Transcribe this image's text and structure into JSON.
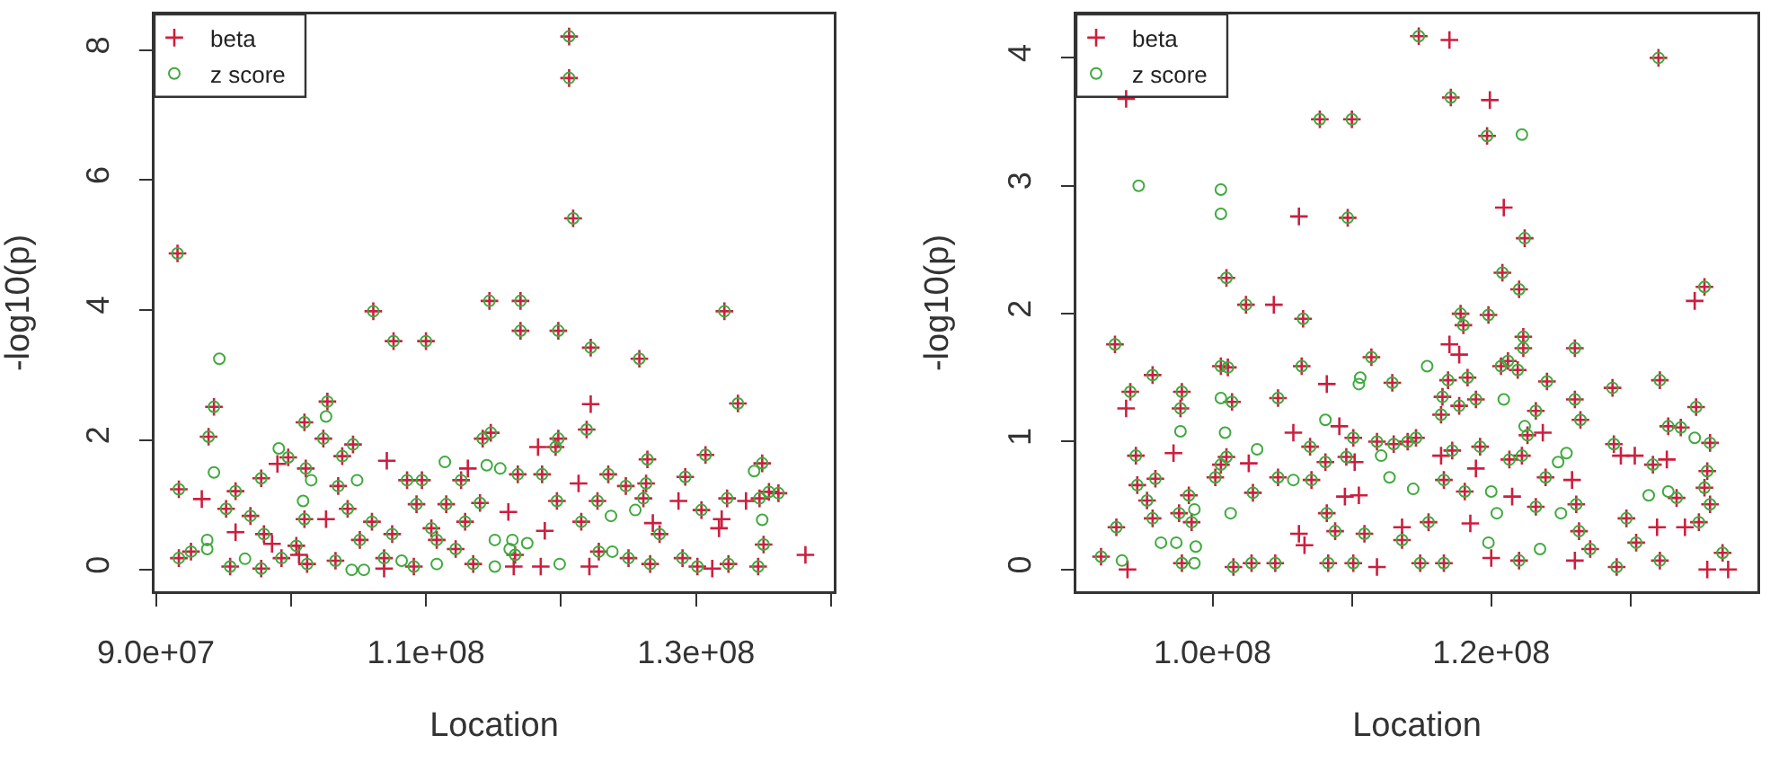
{
  "chart_data": [
    {
      "type": "scatter",
      "xlabel": "Location",
      "ylabel": "-log10(p)",
      "legend": "top left",
      "grid": false,
      "xlim": [
        89900000.0,
        140200000.0
      ],
      "xticks": [
        {
          "value": 90000000.0,
          "label": "9.0e+07"
        },
        {
          "value": 100000000.0,
          "label": null
        },
        {
          "value": 110000000.0,
          "label": "1.1e+08"
        },
        {
          "value": 120000000.0,
          "label": null
        },
        {
          "value": 130000000.0,
          "label": "1.3e+08"
        },
        {
          "value": 140000000.0,
          "label": null
        }
      ],
      "ylim": [
        -0.33,
        8.55
      ],
      "yticks": [
        0,
        2,
        4,
        6,
        8
      ],
      "series": [
        {
          "name": "beta",
          "color": "#cc1f3f",
          "marker": "cross",
          "x": [
            91600000.0,
            91700000.0,
            91700000.0,
            94300000.0,
            93900000.0,
            95200000.0,
            95900000.0,
            92600000.0,
            95500000.0,
            97000000.0,
            97800000.0,
            98000000.0,
            97800000.0,
            99800000.0,
            99300000.0,
            101000000.0,
            101100000.0,
            101000000.0,
            100400000.0,
            101200000.0,
            102400000.0,
            102700000.0,
            103300000.0,
            103800000.0,
            104600000.0,
            104200000.0,
            103500000.0,
            106000000.0,
            106100000.0,
            107600000.0,
            107500000.0,
            108600000.0,
            110000000.0,
            109700000.0,
            109100000.0,
            110400000.0,
            109300000.0,
            111500000.0,
            112200000.0,
            112900000.0,
            113500000.0,
            114000000.0,
            114200000.0,
            114700000.0,
            114800000.0,
            117000000.0,
            117000000.0,
            116800000.0,
            118600000.0,
            119800000.0,
            119800000.0,
            119600000.0,
            119700000.0,
            120600000.0,
            120600000.0,
            120900000.0,
            121500000.0,
            121900000.0,
            122200000.0,
            122700000.0,
            123500000.0,
            124800000.0,
            125800000.0,
            126100000.0,
            126400000.0,
            126300000.0,
            126600000.0,
            127300000.0,
            129200000.0,
            129000000.0,
            130400000.0,
            130700000.0,
            130100000.0,
            132100000.0,
            132300000.0,
            132400000.0,
            133100000.0,
            134900000.0,
            134700000.0,
            134600000.0,
            135400000.0,
            135000000.0,
            136100000.0,
            105100000.0,
            106900000.0,
            110800000.0,
            116600000.0,
            122800000.0,
            125000000.0,
            112600000.0,
            93400000.0,
            95900000.0,
            98600000.0,
            99000000.0,
            102600000.0,
            107100000.0,
            106900000.0,
            113100000.0,
            116100000.0,
            116500000.0,
            118300000.0,
            118500000.0,
            118800000.0,
            121300000.0,
            122200000.0,
            122100000.0,
            126800000.0,
            128700000.0,
            131200000.0,
            131700000.0,
            131900000.0,
            133700000.0,
            138100000.0,
            100600000.0
          ],
          "values": [
            4.87,
            1.24,
            0.18,
            2.51,
            2.05,
            0.94,
            1.21,
            0.28,
            0.05,
            0.83,
            1.41,
            0.55,
            0.02,
            1.73,
            0.18,
            2.27,
            1.56,
            0.78,
            0.37,
            0.09,
            2.02,
            2.59,
            0.14,
            1.75,
            1.93,
            0.94,
            1.29,
            0.74,
            3.98,
            3.52,
            0.55,
            1.38,
            3.52,
            1.38,
            0.05,
            0.64,
            1.01,
            1.01,
            0.32,
            0.74,
            0.09,
            1.03,
            2.02,
            4.14,
            2.11,
            4.14,
            3.68,
            1.47,
            1.47,
            3.68,
            2.02,
            1.89,
            1.06,
            8.21,
            7.57,
            5.41,
            0.74,
            2.16,
            3.42,
            1.06,
            1.47,
            1.29,
            3.25,
            1.1,
            1.7,
            1.33,
            0.09,
            0.55,
            1.43,
            0.18,
            0.92,
            1.77,
            0.05,
            3.98,
            1.1,
            0.09,
            2.56,
            1.64,
            1.1,
            0.05,
            1.2,
            0.39,
            1.18,
            0.46,
            0.18,
            0.46,
            0.23,
            0.28,
            0.18,
            1.38,
            1.09,
            0.58,
            0.4,
            1.63,
            0.78,
            1.68,
            0.02,
            1.56,
            0.89,
            0.05,
            1.89,
            0.05,
            0.6,
            1.33,
            2.55,
            0.05,
            0.72,
            1.06,
            0.02,
            0.64,
            0.78,
            1.06,
            0.23,
            0.23
          ]
        },
        {
          "name": "z score",
          "color": "#3faa3f",
          "marker": "circle",
          "x": [
            91600000.0,
            91700000.0,
            91700000.0,
            94300000.0,
            93900000.0,
            95200000.0,
            95900000.0,
            92600000.0,
            95500000.0,
            97000000.0,
            97800000.0,
            98000000.0,
            97800000.0,
            99800000.0,
            99300000.0,
            101000000.0,
            101100000.0,
            101000000.0,
            100400000.0,
            101200000.0,
            102400000.0,
            102700000.0,
            103300000.0,
            103800000.0,
            104600000.0,
            104200000.0,
            103500000.0,
            106000000.0,
            106100000.0,
            107600000.0,
            107500000.0,
            108600000.0,
            110000000.0,
            109700000.0,
            109100000.0,
            110400000.0,
            109300000.0,
            111500000.0,
            112200000.0,
            112900000.0,
            113500000.0,
            114000000.0,
            114200000.0,
            114700000.0,
            114800000.0,
            117000000.0,
            117000000.0,
            116800000.0,
            118600000.0,
            119800000.0,
            119800000.0,
            119600000.0,
            119700000.0,
            120600000.0,
            120600000.0,
            120900000.0,
            121500000.0,
            121900000.0,
            122200000.0,
            122700000.0,
            123500000.0,
            124800000.0,
            125800000.0,
            126100000.0,
            126400000.0,
            126300000.0,
            126600000.0,
            127300000.0,
            129200000.0,
            129000000.0,
            130400000.0,
            130700000.0,
            130100000.0,
            132100000.0,
            132300000.0,
            132400000.0,
            133100000.0,
            134900000.0,
            134700000.0,
            134600000.0,
            135400000.0,
            135000000.0,
            136100000.0,
            105100000.0,
            106900000.0,
            110800000.0,
            116600000.0,
            122800000.0,
            125000000.0,
            112600000.0,
            94700000.0,
            94300000.0,
            93800000.0,
            93800000.0,
            96600000.0,
            99100000.0,
            100900000.0,
            102600000.0,
            101500000.0,
            104500000.0,
            105400000.0,
            104900000.0,
            108200000.0,
            111400000.0,
            110800000.0,
            114500000.0,
            115500000.0,
            115100000.0,
            116200000.0,
            117500000.0,
            119900000.0,
            123800000.0,
            123700000.0,
            125500000.0,
            134300000.0,
            134900000.0,
            115100000.0,
            116400000.0
          ],
          "values": [
            4.87,
            1.24,
            0.18,
            2.51,
            2.05,
            0.94,
            1.21,
            0.28,
            0.05,
            0.83,
            1.41,
            0.55,
            0.02,
            1.73,
            0.18,
            2.27,
            1.56,
            0.78,
            0.37,
            0.09,
            2.02,
            2.59,
            0.14,
            1.75,
            1.93,
            0.94,
            1.29,
            0.74,
            3.98,
            3.52,
            0.55,
            1.38,
            3.52,
            1.38,
            0.05,
            0.64,
            1.01,
            1.01,
            0.32,
            0.74,
            0.09,
            1.03,
            2.02,
            4.14,
            2.11,
            4.14,
            3.68,
            1.47,
            1.47,
            3.68,
            2.02,
            1.89,
            1.06,
            8.21,
            7.57,
            5.41,
            0.74,
            2.16,
            3.42,
            1.06,
            1.47,
            1.29,
            3.25,
            1.1,
            1.7,
            1.33,
            0.09,
            0.55,
            1.43,
            0.18,
            0.92,
            1.77,
            0.05,
            3.98,
            1.1,
            0.09,
            2.56,
            1.64,
            1.1,
            0.05,
            1.2,
            0.39,
            1.18,
            0.46,
            0.18,
            0.46,
            0.23,
            0.28,
            0.18,
            1.38,
            3.25,
            1.5,
            0.46,
            0.32,
            0.17,
            1.87,
            1.06,
            2.36,
            1.38,
            0.0,
            0.0,
            1.38,
            0.14,
            1.66,
            0.09,
            1.61,
            1.56,
            0.05,
            0.32,
            0.41,
            0.09,
            0.28,
            0.83,
            0.92,
            1.52,
            0.77,
            0.46,
            0.46
          ]
        }
      ]
    },
    {
      "type": "scatter",
      "xlabel": "Location",
      "ylabel": "-log10(p)",
      "legend": "top left",
      "grid": false,
      "xlim": [
        90230000.0,
        139100000.0
      ],
      "xticks": [
        {
          "value": 100000000.0,
          "label": "1.0e+08"
        },
        {
          "value": 110000000.0,
          "label": null
        },
        {
          "value": 120000000.0,
          "label": "1.2e+08"
        },
        {
          "value": 130000000.0,
          "label": null
        }
      ],
      "ylim": [
        -0.17,
        4.34
      ],
      "yticks": [
        0,
        1,
        2,
        3,
        4
      ],
      "series": [
        {
          "name": "beta",
          "color": "#cc1f3f",
          "marker": "cross",
          "x": [
            92000000.0,
            93000000.0,
            93100000.0,
            94100000.0,
            94500000.0,
            94600000.0,
            95300000.0,
            95700000.0,
            95900000.0,
            95700000.0,
            97800000.0,
            97700000.0,
            97600000.0,
            98300000.0,
            98500000.0,
            97800000.0,
            100200000.0,
            100600000.0,
            100600000.0,
            101000000.0,
            101000000.0,
            101100000.0,
            101400000.0,
            101500000.0,
            102400000.0,
            102900000.0,
            102800000.0,
            104700000.0,
            104700000.0,
            104500000.0,
            106500000.0,
            106400000.0,
            107000000.0,
            107700000.0,
            107100000.0,
            108100000.0,
            108200000.0,
            108300000.0,
            108800000.0,
            109700000.0,
            110000000.0,
            109600000.0,
            110100000.0,
            110100000.0,
            110900000.0,
            111400000.0,
            111800000.0,
            112900000.0,
            113000000.0,
            113600000.0,
            114000000.0,
            114600000.0,
            114800000.0,
            114900000.0,
            115500000.0,
            116400000.0,
            116500000.0,
            116600000.0,
            116600000.0,
            117100000.0,
            116900000.0,
            117200000.0,
            117700000.0,
            117800000.0,
            118000000.0,
            118100000.0,
            118300000.0,
            118900000.0,
            119200000.0,
            119700000.0,
            119800000.0,
            120800000.0,
            120700000.0,
            121200000.0,
            121300000.0,
            122000000.0,
            121900000.0,
            122300000.0,
            122300000.0,
            122400000.0,
            122600000.0,
            122000000.0,
            122200000.0,
            123200000.0,
            123200000.0,
            123900000.0,
            124000000.0,
            126000000.0,
            126000000.0,
            126100000.0,
            126300000.0,
            126400000.0,
            127100000.0,
            128700000.0,
            128800000.0,
            129000000.0,
            129700000.0,
            130400000.0,
            131600000.0,
            132000000.0,
            132100000.0,
            132100000.0,
            132700000.0,
            133300000.0,
            133600000.0,
            134700000.0,
            134900000.0,
            135300000.0,
            135300000.0,
            135500000.0,
            135700000.0,
            135700000.0,
            136600000.0,
            93800000.0,
            93900000.0,
            93800000.0,
            97200000.0,
            102600000.0,
            104400000.0,
            106200000.0,
            105800000.0,
            106200000.0,
            106600000.0,
            108200000.0,
            109100000.0,
            109500000.0,
            110200000.0,
            110500000.0,
            111800000.0,
            113600000.0,
            116400000.0,
            117000000.0,
            117000000.0,
            117700000.0,
            118500000.0,
            118900000.0,
            119900000.0,
            120000000.0,
            120900000.0,
            121500000.0,
            123700000.0,
            125800000.0,
            126000000.0,
            129300000.0,
            130300000.0,
            131900000.0,
            132600000.0,
            133900000.0,
            134600000.0,
            135500000.0,
            137000000.0
          ],
          "values": [
            0.1,
            1.76,
            0.33,
            1.39,
            0.89,
            0.66,
            0.54,
            1.52,
            0.71,
            0.4,
            1.39,
            1.26,
            0.44,
            0.58,
            0.37,
            0.05,
            0.72,
            0.82,
            1.59,
            2.28,
            0.88,
            1.58,
            1.31,
            0.02,
            2.07,
            0.6,
            0.05,
            1.34,
            0.72,
            0.05,
            1.96,
            1.59,
            0.96,
            3.52,
            0.7,
            0.84,
            0.44,
            0.05,
            0.3,
            2.75,
            3.52,
            0.88,
            1.03,
            0.05,
            0.28,
            1.66,
            1.0,
            1.46,
            0.98,
            0.23,
            1.0,
            1.03,
            4.17,
            0.05,
            0.37,
            1.21,
            1.35,
            0.7,
            0.05,
            3.69,
            1.48,
            0.93,
            1.28,
            2.0,
            1.91,
            0.61,
            1.5,
            1.33,
            0.96,
            3.39,
            1.99,
            2.32,
            1.59,
            1.63,
            0.86,
            2.19,
            1.56,
            1.82,
            1.73,
            2.59,
            1.05,
            0.07,
            0.89,
            0.49,
            1.24,
            0.72,
            1.47,
            1.73,
            1.33,
            0.51,
            0.3,
            1.17,
            0.16,
            1.42,
            0.98,
            0.02,
            0.4,
            0.21,
            0.82,
            4.0,
            1.48,
            0.07,
            1.12,
            0.56,
            1.11,
            1.27,
            0.37,
            2.21,
            0.64,
            0.77,
            0.99,
            0.51,
            0.13,
            3.68,
            0.0,
            1.26,
            0.91,
            0.83,
            2.07,
            2.76,
            1.07,
            0.28,
            0.19,
            1.45,
            1.12,
            0.57,
            0.84,
            0.58,
            0.02,
            0.33,
            0.89,
            4.14,
            1.76,
            1.68,
            0.36,
            0.79,
            3.67,
            0.09,
            2.83,
            0.57,
            1.07,
            0.7,
            0.07,
            0.89,
            0.89,
            0.33,
            0.86,
            0.33,
            2.1,
            0.0,
            0.0
          ]
        },
        {
          "name": "z score",
          "color": "#3faa3f",
          "marker": "circle",
          "x": [
            92000000.0,
            93000000.0,
            93100000.0,
            94100000.0,
            94500000.0,
            94600000.0,
            95300000.0,
            95700000.0,
            95900000.0,
            95700000.0,
            97800000.0,
            97700000.0,
            97600000.0,
            98300000.0,
            98500000.0,
            97800000.0,
            100200000.0,
            100600000.0,
            100600000.0,
            101000000.0,
            101000000.0,
            101100000.0,
            101400000.0,
            101500000.0,
            102400000.0,
            102900000.0,
            102800000.0,
            104700000.0,
            104700000.0,
            104500000.0,
            106500000.0,
            106400000.0,
            107000000.0,
            107700000.0,
            107100000.0,
            108100000.0,
            108200000.0,
            108300000.0,
            108800000.0,
            109700000.0,
            110000000.0,
            109600000.0,
            110100000.0,
            110100000.0,
            110900000.0,
            111400000.0,
            111800000.0,
            112900000.0,
            113000000.0,
            113600000.0,
            114000000.0,
            114600000.0,
            114800000.0,
            114900000.0,
            115500000.0,
            116400000.0,
            116500000.0,
            116600000.0,
            116600000.0,
            117100000.0,
            116900000.0,
            117200000.0,
            117700000.0,
            117800000.0,
            118000000.0,
            118100000.0,
            118300000.0,
            118900000.0,
            119200000.0,
            119700000.0,
            119800000.0,
            120800000.0,
            120700000.0,
            121200000.0,
            121300000.0,
            122000000.0,
            121900000.0,
            122300000.0,
            122300000.0,
            122400000.0,
            122600000.0,
            122000000.0,
            122200000.0,
            123200000.0,
            123200000.0,
            123900000.0,
            124000000.0,
            126000000.0,
            126000000.0,
            126100000.0,
            126300000.0,
            126400000.0,
            127100000.0,
            128700000.0,
            128800000.0,
            129000000.0,
            129700000.0,
            130400000.0,
            131600000.0,
            132000000.0,
            132100000.0,
            132100000.0,
            132700000.0,
            133300000.0,
            133600000.0,
            134700000.0,
            134900000.0,
            135300000.0,
            135300000.0,
            135500000.0,
            135700000.0,
            135700000.0,
            136600000.0,
            93500000.0,
            94700000.0,
            96300000.0,
            97400000.0,
            97700000.0,
            98700000.0,
            98800000.0,
            98700000.0,
            100600000.0,
            100600000.0,
            100600000.0,
            100900000.0,
            101300000.0,
            103200000.0,
            105800000.0,
            108100000.0,
            110500000.0,
            110600000.0,
            112100000.0,
            112700000.0,
            114400000.0,
            115400000.0,
            119800000.0,
            120000000.0,
            120400000.0,
            120900000.0,
            122200000.0,
            122400000.0,
            123500000.0,
            124800000.0,
            125000000.0,
            125400000.0,
            131300000.0,
            132700000.0,
            134600000.0
          ],
          "values": [
            0.1,
            1.76,
            0.33,
            1.39,
            0.89,
            0.66,
            0.54,
            1.52,
            0.71,
            0.4,
            1.39,
            1.26,
            0.44,
            0.58,
            0.37,
            0.05,
            0.72,
            0.82,
            1.59,
            2.28,
            0.88,
            1.58,
            1.31,
            0.02,
            2.07,
            0.6,
            0.05,
            1.34,
            0.72,
            0.05,
            1.96,
            1.59,
            0.96,
            3.52,
            0.7,
            0.84,
            0.44,
            0.05,
            0.3,
            2.75,
            3.52,
            0.88,
            1.03,
            0.05,
            0.28,
            1.66,
            1.0,
            1.46,
            0.98,
            0.23,
            1.0,
            1.03,
            4.17,
            0.05,
            0.37,
            1.21,
            1.35,
            0.7,
            0.05,
            3.69,
            1.48,
            0.93,
            1.28,
            2.0,
            1.91,
            0.61,
            1.5,
            1.33,
            0.96,
            3.39,
            1.99,
            2.32,
            1.59,
            1.63,
            0.86,
            2.19,
            1.56,
            1.82,
            1.73,
            2.59,
            1.05,
            0.07,
            0.89,
            0.49,
            1.24,
            0.72,
            1.47,
            1.73,
            1.33,
            0.51,
            0.3,
            1.17,
            0.16,
            1.42,
            0.98,
            0.02,
            0.4,
            0.21,
            0.82,
            4.0,
            1.48,
            0.07,
            1.12,
            0.56,
            1.11,
            1.27,
            0.37,
            2.21,
            0.64,
            0.77,
            0.99,
            0.51,
            0.13,
            0.07,
            3.0,
            0.21,
            0.21,
            1.08,
            0.47,
            0.18,
            0.05,
            1.34,
            2.97,
            2.78,
            1.07,
            0.44,
            0.94,
            0.7,
            1.17,
            1.45,
            1.5,
            0.89,
            0.72,
            0.63,
            1.59,
            0.21,
            0.61,
            0.44,
            1.33,
            3.4,
            1.12,
            0.16,
            0.84,
            0.44,
            0.91,
            0.58,
            0.61,
            1.03
          ]
        }
      ]
    }
  ]
}
